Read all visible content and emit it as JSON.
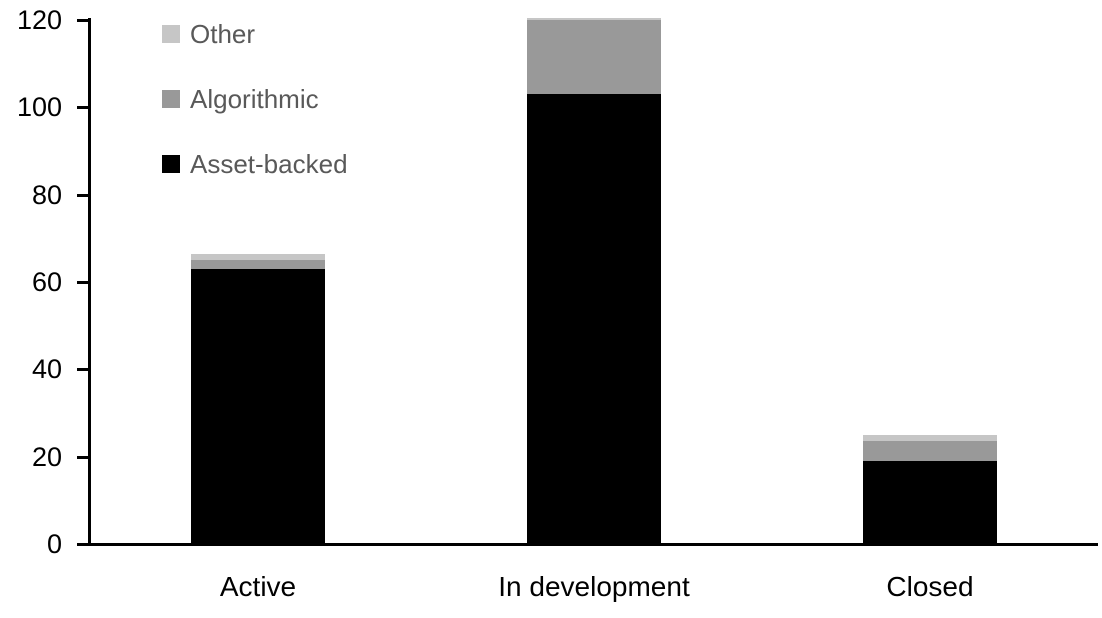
{
  "chart_data": {
    "type": "bar",
    "stacked": true,
    "title": "",
    "xlabel": "",
    "ylabel": "",
    "grid": false,
    "background_color": "#ffffff",
    "axis_color": "#000000",
    "categories": [
      "Active",
      "In development",
      "Closed"
    ],
    "series": [
      {
        "name": "Asset-backed",
        "color": "#000000",
        "values": [
          63,
          103,
          19
        ]
      },
      {
        "name": "Algorithmic",
        "color": "#999999",
        "values": [
          2,
          17,
          4.5
        ]
      },
      {
        "name": "Other",
        "color": "#c6c6c6",
        "values": [
          1.5,
          0.5,
          1.5
        ]
      }
    ],
    "ylim": [
      0,
      120
    ],
    "yticks": [
      0,
      20,
      40,
      60,
      80,
      100,
      120
    ],
    "legend": {
      "position": "upper-left",
      "text_color": "#595959",
      "order": [
        "Other",
        "Algorithmic",
        "Asset-backed"
      ]
    }
  }
}
